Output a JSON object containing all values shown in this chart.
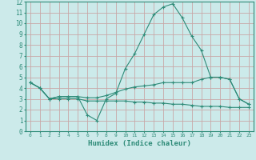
{
  "xlabel": "Humidex (Indice chaleur)",
  "x": [
    0,
    1,
    2,
    3,
    4,
    5,
    6,
    7,
    8,
    9,
    10,
    11,
    12,
    13,
    14,
    15,
    16,
    17,
    18,
    19,
    20,
    21,
    22,
    23
  ],
  "line1": [
    4.5,
    4.0,
    3.0,
    3.2,
    3.2,
    3.2,
    1.5,
    1.0,
    3.0,
    3.5,
    5.8,
    7.2,
    9.0,
    10.8,
    11.5,
    11.8,
    10.5,
    8.8,
    7.5,
    5.0,
    5.0,
    4.8,
    3.0,
    2.5
  ],
  "line2": [
    4.5,
    4.0,
    3.0,
    3.2,
    3.2,
    3.2,
    3.1,
    3.1,
    3.3,
    3.6,
    3.9,
    4.1,
    4.2,
    4.3,
    4.5,
    4.5,
    4.5,
    4.5,
    4.8,
    5.0,
    5.0,
    4.8,
    3.0,
    2.5
  ],
  "line3": [
    4.5,
    4.0,
    3.0,
    3.0,
    3.0,
    3.0,
    2.8,
    2.8,
    2.8,
    2.8,
    2.8,
    2.7,
    2.7,
    2.6,
    2.6,
    2.5,
    2.5,
    2.4,
    2.3,
    2.3,
    2.3,
    2.2,
    2.2,
    2.2
  ],
  "line_color": "#2e8b78",
  "bg_color": "#cceaea",
  "grid_color": "#b8d8d8",
  "ylim": [
    0,
    12
  ],
  "xlim": [
    -0.5,
    23.5
  ]
}
